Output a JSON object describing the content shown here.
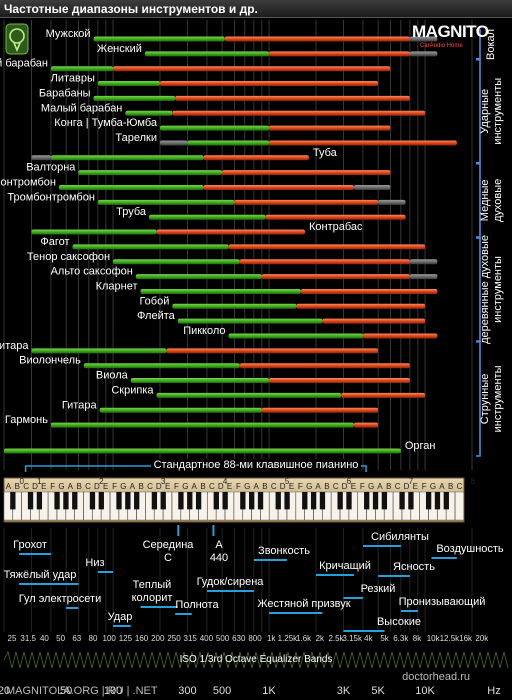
{
  "window_title": "Частотные диапазоны инструментов и др.",
  "logo": {
    "text": "MAGNITO",
    "subtitle": "CarAudio Home"
  },
  "footer_left": "MAGNITOLA.ORG | RU | .NET",
  "footer_right": "doctorhead.ru",
  "piano_caption": "Стандартное 88-ми клавишное пианино",
  "eq_caption": "ISO 1/3rd Octave Equalizer Bands",
  "colors": {
    "fundamental": "#3fae1e",
    "harmonics": "#e0481b",
    "extended": "#6f6f6f",
    "group_line": "#4a8fe0",
    "label_line": "#24a0dc"
  },
  "chart_data": {
    "type": "bar",
    "x_scale": "log",
    "xlim": [
      20,
      20000
    ],
    "x_ticks": [
      20,
      50,
      100,
      300,
      500,
      1000,
      3000,
      5000,
      10000
    ],
    "x_tick_labels": [
      "20",
      "50",
      "100",
      "300",
      "500",
      "1K",
      "3K",
      "5K",
      "10K"
    ],
    "x_unit": "Hz",
    "iso_bands": [
      "25",
      "31.5",
      "40",
      "50",
      "63",
      "80",
      "100",
      "125",
      "160",
      "200",
      "250",
      "315",
      "400",
      "500",
      "630",
      "800",
      "1k",
      "1.25k",
      "1.6k",
      "2k",
      "2.5k",
      "3.15k",
      "4k",
      "5k",
      "6.3k",
      "8k",
      "10k",
      "12.5k",
      "16k",
      "20k"
    ],
    "groups": [
      {
        "name": "Вокал",
        "rows": [
          0,
          1
        ]
      },
      {
        "name": "Ударные инструменты",
        "rows": [
          2,
          8
        ]
      },
      {
        "name": "Медные духовые",
        "rows": [
          9,
          13
        ]
      },
      {
        "name": "деревянные духовые инструменты",
        "rows": [
          14,
          20
        ]
      },
      {
        "name": "Струнные инструменты",
        "rows": [
          21,
          27
        ]
      }
    ],
    "instruments": [
      {
        "name": "Мужской",
        "fund": [
          75,
          520
        ],
        "harm": [
          520,
          8000
        ],
        "ext": [
          8000,
          12000
        ],
        "label_side": "left"
      },
      {
        "name": "Женский",
        "fund": [
          160,
          1000
        ],
        "harm": [
          1000,
          8000
        ],
        "ext": [
          8000,
          12000
        ],
        "label_side": "left"
      },
      {
        "name": "Большой барабан",
        "fund": [
          40,
          100
        ],
        "harm": [
          100,
          6000
        ],
        "label_side": "left"
      },
      {
        "name": "Литавры",
        "fund": [
          80,
          200
        ],
        "harm": [
          200,
          5000
        ],
        "label_side": "left"
      },
      {
        "name": "Барабаны",
        "fund": [
          75,
          250
        ],
        "harm": [
          250,
          8000
        ],
        "label_side": "left"
      },
      {
        "name": "Малый барабан",
        "fund": [
          120,
          240
        ],
        "harm": [
          240,
          10000
        ],
        "label_side": "left"
      },
      {
        "name": "Конга | Тумба-Юмба",
        "fund": [
          200,
          1000
        ],
        "harm": [
          1000,
          6000
        ],
        "label_side": "left"
      },
      {
        "name": "Тарелки",
        "ext": [
          200,
          300
        ],
        "fund": [
          300,
          1000
        ],
        "harm": [
          1000,
          16000
        ],
        "label_side": "left"
      },
      {
        "name": "Туба",
        "ext": [
          30,
          40
        ],
        "fund": [
          40,
          380
        ],
        "harm": [
          380,
          1800
        ],
        "label_side": "right"
      },
      {
        "name": "Валторна",
        "fund": [
          60,
          500
        ],
        "harm": [
          500,
          6000
        ],
        "label_side": "left"
      },
      {
        "name": "Басс тромбонтромбон",
        "fund": [
          45,
          380
        ],
        "harm": [
          380,
          3500
        ],
        "ext": [
          3500,
          6000
        ],
        "label_side": "left"
      },
      {
        "name": "Тромбонтромбон",
        "fund": [
          80,
          600
        ],
        "harm": [
          600,
          5000
        ],
        "ext": [
          5000,
          7500
        ],
        "label_side": "left"
      },
      {
        "name": "Труба",
        "fund": [
          170,
          950
        ],
        "harm": [
          950,
          7500
        ],
        "label_side": "left"
      },
      {
        "name": "Контрабас",
        "fund": [
          30,
          190
        ],
        "harm": [
          190,
          1700
        ],
        "label_side": "right"
      },
      {
        "name": "Фагот",
        "fund": [
          55,
          550
        ],
        "harm": [
          550,
          10000
        ],
        "label_side": "left"
      },
      {
        "name": "Тенор саксофон",
        "fund": [
          100,
          650
        ],
        "harm": [
          650,
          8000
        ],
        "ext": [
          8000,
          12000
        ],
        "label_side": "left"
      },
      {
        "name": "Альто саксофон",
        "fund": [
          140,
          900
        ],
        "harm": [
          900,
          8000
        ],
        "ext": [
          8000,
          12000
        ],
        "label_side": "left"
      },
      {
        "name": "Кларнет",
        "fund": [
          150,
          1600
        ],
        "harm": [
          1600,
          12000
        ],
        "label_side": "left"
      },
      {
        "name": "Гобой",
        "fund": [
          240,
          1500
        ],
        "harm": [
          1500,
          10000
        ],
        "label_side": "left"
      },
      {
        "name": "Флейта",
        "fund": [
          260,
          2200
        ],
        "harm": [
          2200,
          10000
        ],
        "label_side": "left"
      },
      {
        "name": "Пикколо",
        "fund": [
          550,
          4000
        ],
        "harm": [
          4000,
          12000
        ],
        "label_side": "left"
      },
      {
        "name": "Бас гитара",
        "fund": [
          30,
          220
        ],
        "harm": [
          220,
          5000
        ],
        "label_side": "left"
      },
      {
        "name": "Виолончель",
        "fund": [
          65,
          650
        ],
        "harm": [
          650,
          8000
        ],
        "label_side": "left"
      },
      {
        "name": "Виола",
        "fund": [
          130,
          1000
        ],
        "harm": [
          1000,
          8000
        ],
        "label_side": "left"
      },
      {
        "name": "Скрипка",
        "fund": [
          190,
          2900
        ],
        "harm": [
          2900,
          10000
        ],
        "label_side": "left"
      },
      {
        "name": "Гитара",
        "fund": [
          82,
          900
        ],
        "harm": [
          900,
          5000
        ],
        "label_side": "left"
      },
      {
        "name": "Гармонь",
        "fund": [
          40,
          3500
        ],
        "harm": [
          3500,
          5000
        ],
        "label_side": "left"
      },
      {
        "name": "Орган",
        "fund": [
          20,
          7000
        ],
        "label_side": "right"
      }
    ],
    "piano_range": [
      27.5,
      4186
    ],
    "piano_octave_numbers": [
      "0",
      "1",
      "2",
      "3",
      "4",
      "5",
      "6",
      "7",
      "8"
    ],
    "piano_notes": [
      "C",
      "D",
      "E",
      "F",
      "G",
      "A",
      "B"
    ],
    "annotations": [
      {
        "text": "Грохот",
        "freq": [
          25,
          40
        ]
      },
      {
        "text": "Тяжёлый удар",
        "freq": [
          25,
          60
        ]
      },
      {
        "text": "Низ",
        "freq": [
          80,
          100
        ]
      },
      {
        "text": "Гул электросети",
        "freq": [
          50,
          60
        ]
      },
      {
        "text": "Удар",
        "freq": [
          100,
          130
        ]
      },
      {
        "text": "Теплый колорит",
        "freq": [
          150,
          260
        ]
      },
      {
        "text": "Середина С",
        "freq": [
          262,
          262
        ]
      },
      {
        "text": "A 440",
        "freq": [
          440,
          440
        ]
      },
      {
        "text": "Полнота",
        "freq": [
          250,
          320
        ]
      },
      {
        "text": "Гудок/сирена",
        "freq": [
          400,
          800
        ]
      },
      {
        "text": "Звонкость",
        "freq": [
          800,
          1300
        ]
      },
      {
        "text": "Жестяной призвук",
        "freq": [
          1000,
          2200
        ]
      },
      {
        "text": "Кричащий",
        "freq": [
          2000,
          3500
        ]
      },
      {
        "text": "Сибилянты",
        "freq": [
          4000,
          7000
        ]
      },
      {
        "text": "Ясность",
        "freq": [
          5000,
          8000
        ]
      },
      {
        "text": "Резкий",
        "freq": [
          3000,
          4000
        ]
      },
      {
        "text": "Воздушность",
        "freq": [
          11000,
          16000
        ]
      },
      {
        "text": "Пронизывающий",
        "freq": [
          7000,
          9000
        ]
      },
      {
        "text": "Высокие",
        "freq": [
          3000,
          5500
        ]
      }
    ]
  }
}
